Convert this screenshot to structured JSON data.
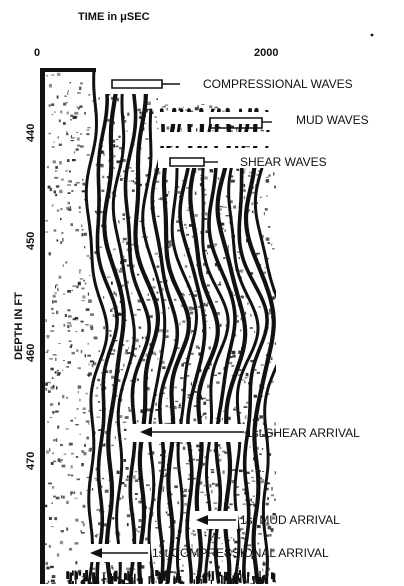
{
  "time_axis": {
    "title": "TIME in μSEC",
    "min_label": "0",
    "max_label": "2000",
    "min": 0,
    "max": 2000
  },
  "depth_axis": {
    "title": "DEPTH IN FT",
    "ticks": [
      "440",
      "450",
      "460",
      "470"
    ],
    "tick_values": [
      440,
      450,
      460,
      470
    ],
    "range": [
      433,
      481
    ]
  },
  "annotations": [
    {
      "id": "compressional-waves",
      "text": "COMPRESSIONAL WAVES"
    },
    {
      "id": "mud-waves",
      "text": "MUD WAVES"
    },
    {
      "id": "shear-waves",
      "text": "SHEAR WAVES"
    },
    {
      "id": "first-shear-arrival",
      "text": "1st SHEAR ARRIVAL"
    },
    {
      "id": "first-mud-arrival",
      "text": "1st MUD ARRIVAL"
    },
    {
      "id": "first-compressional-arrival",
      "text": "1st COMPRESSIONAL ARRIVAL"
    }
  ]
}
